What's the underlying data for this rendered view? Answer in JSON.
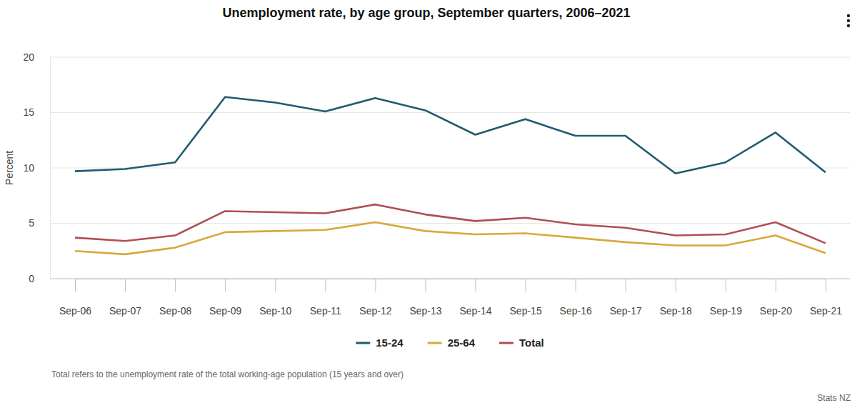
{
  "chart_data": {
    "type": "line",
    "title": "Unemployment rate, by age group, September quarters, 2006–2021",
    "y_label": "Percent",
    "footnote": "Total refers to the unemployment rate of the total working-age population (15 years and over)",
    "source": "Stats NZ",
    "categories": [
      "Sep-06",
      "Sep-07",
      "Sep-08",
      "Sep-09",
      "Sep-10",
      "Sep-11",
      "Sep-12",
      "Sep-13",
      "Sep-14",
      "Sep-15",
      "Sep-16",
      "Sep-17",
      "Sep-18",
      "Sep-19",
      "Sep-20",
      "Sep-21"
    ],
    "series": [
      {
        "name": "15-24",
        "color": "#1f5b6f",
        "values": [
          9.7,
          9.9,
          10.5,
          16.4,
          15.9,
          15.1,
          16.3,
          15.2,
          13.0,
          14.4,
          12.9,
          12.9,
          9.5,
          10.5,
          13.2,
          9.6
        ]
      },
      {
        "name": "25-64",
        "color": "#d6a93a",
        "values": [
          2.5,
          2.2,
          2.8,
          4.2,
          4.3,
          4.4,
          5.1,
          4.3,
          4.0,
          4.1,
          3.7,
          3.3,
          3.0,
          3.0,
          3.9,
          2.3
        ]
      },
      {
        "name": "Total",
        "color": "#b04e56",
        "values": [
          3.7,
          3.4,
          3.9,
          6.1,
          6.0,
          5.9,
          6.7,
          5.8,
          5.2,
          5.5,
          4.9,
          4.6,
          3.9,
          4.0,
          5.1,
          3.2
        ]
      }
    ],
    "ylim": [
      0,
      20
    ],
    "yticks": [
      0,
      5,
      10,
      15,
      20
    ],
    "grid": true,
    "legend": "bottom"
  }
}
